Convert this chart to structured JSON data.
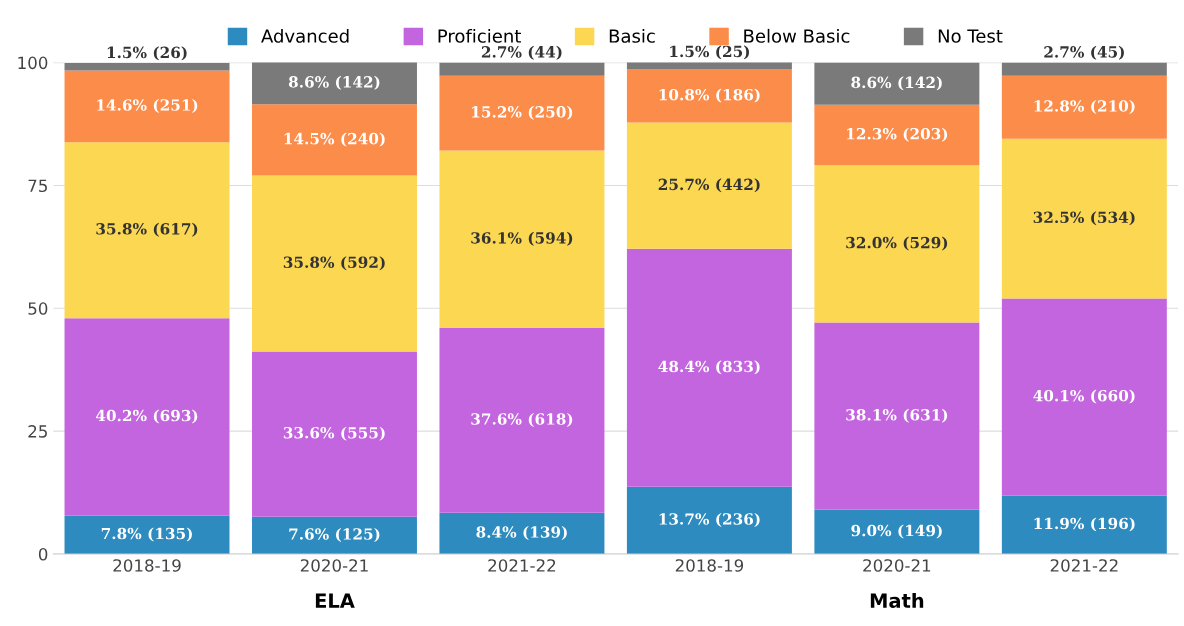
{
  "chart_data": {
    "type": "bar",
    "stacked": true,
    "categories": [
      "2018-19",
      "2020-21",
      "2021-22",
      "2018-19",
      "2020-21",
      "2021-22"
    ],
    "series": [
      {
        "name": "Advanced",
        "color": "#2e8bbf",
        "values": [
          7.8,
          7.6,
          8.4,
          13.7,
          9.0,
          11.9
        ],
        "value_labels": [
          "7.8% (135)",
          "7.6% (125)",
          "8.4% (139)",
          "13.7% (236)",
          "9.0% (149)",
          "11.9% (196)"
        ]
      },
      {
        "name": "Proficient",
        "color": "#c465e0",
        "values": [
          40.2,
          33.6,
          37.6,
          48.4,
          38.1,
          40.1
        ],
        "value_labels": [
          "40.2% (693)",
          "33.6% (555)",
          "37.6% (618)",
          "48.4% (833)",
          "38.1% (631)",
          "40.1% (660)"
        ]
      },
      {
        "name": "Basic",
        "color": "#fcd752",
        "values": [
          35.8,
          35.8,
          36.1,
          25.7,
          32.0,
          32.5
        ],
        "value_labels": [
          "35.8% (617)",
          "35.8% (592)",
          "36.1% (594)",
          "25.7% (442)",
          "32.0% (529)",
          "32.5% (534)"
        ]
      },
      {
        "name": "Below Basic",
        "color": "#fc8c4a",
        "values": [
          14.6,
          14.5,
          15.2,
          10.8,
          12.3,
          12.8
        ],
        "value_labels": [
          "14.6% (251)",
          "14.5% (240)",
          "15.2% (250)",
          "10.8% (186)",
          "12.3% (203)",
          "12.8% (210)"
        ]
      },
      {
        "name": "No Test",
        "color": "#7a7a7a",
        "values": [
          1.5,
          8.6,
          2.7,
          1.5,
          8.6,
          2.7
        ],
        "value_labels": [
          "1.5% (26)",
          "8.6% (142)",
          "2.7% (44)",
          "1.5% (25)",
          "8.6% (142)",
          "2.7% (45)"
        ]
      }
    ],
    "ylim": [
      0,
      100
    ],
    "yticks": [
      0,
      25,
      50,
      75,
      100
    ],
    "grid": "y",
    "legend": "top",
    "annotations": [
      "ELA",
      "Math"
    ]
  }
}
